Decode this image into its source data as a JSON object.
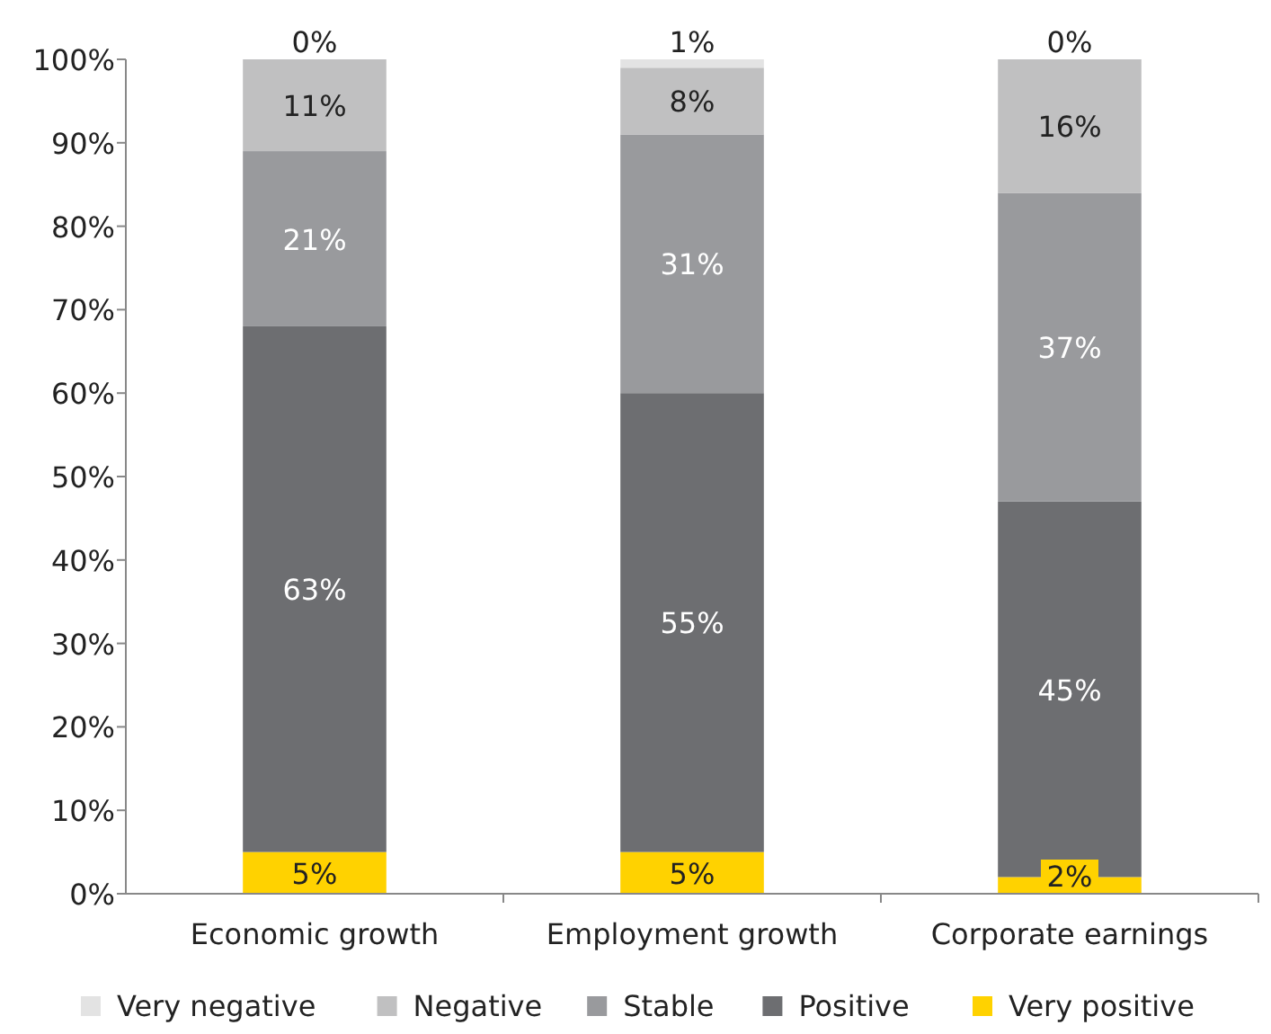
{
  "chart_data": {
    "type": "bar",
    "stacked": true,
    "categories": [
      "Economic growth",
      "Employment growth",
      "Corporate earnings"
    ],
    "series": [
      {
        "name": "Very positive",
        "color": "#ffd200",
        "values": [
          5,
          5,
          2
        ],
        "value_labels": [
          "5%",
          "5%",
          "2%"
        ]
      },
      {
        "name": "Positive",
        "color": "#6d6e71",
        "values": [
          63,
          55,
          45
        ],
        "value_labels": [
          "63%",
          "55%",
          "45%"
        ]
      },
      {
        "name": "Stable",
        "color": "#999a9d",
        "values": [
          21,
          31,
          37
        ],
        "value_labels": [
          "21%",
          "31%",
          "37%"
        ]
      },
      {
        "name": "Negative",
        "color": "#c0c0c1",
        "values": [
          11,
          8,
          16
        ],
        "value_labels": [
          "11%",
          "8%",
          "16%"
        ]
      },
      {
        "name": "Very negative",
        "color": "#e3e3e3",
        "values": [
          0,
          1,
          0
        ],
        "value_labels": [
          "0%",
          "1%",
          "0%"
        ]
      }
    ],
    "ylim": [
      0,
      100
    ],
    "yticks": [
      {
        "value": 0,
        "label": "0%"
      },
      {
        "value": 10,
        "label": "10%"
      },
      {
        "value": 20,
        "label": "20%"
      },
      {
        "value": 30,
        "label": "30%"
      },
      {
        "value": 40,
        "label": "40%"
      },
      {
        "value": 50,
        "label": "50%"
      },
      {
        "value": 60,
        "label": "60%"
      },
      {
        "value": 70,
        "label": "70%"
      },
      {
        "value": 80,
        "label": "80%"
      },
      {
        "value": 90,
        "label": "90%"
      },
      {
        "value": 100,
        "label": "100%"
      }
    ],
    "grid": false,
    "legend": "bottom"
  }
}
